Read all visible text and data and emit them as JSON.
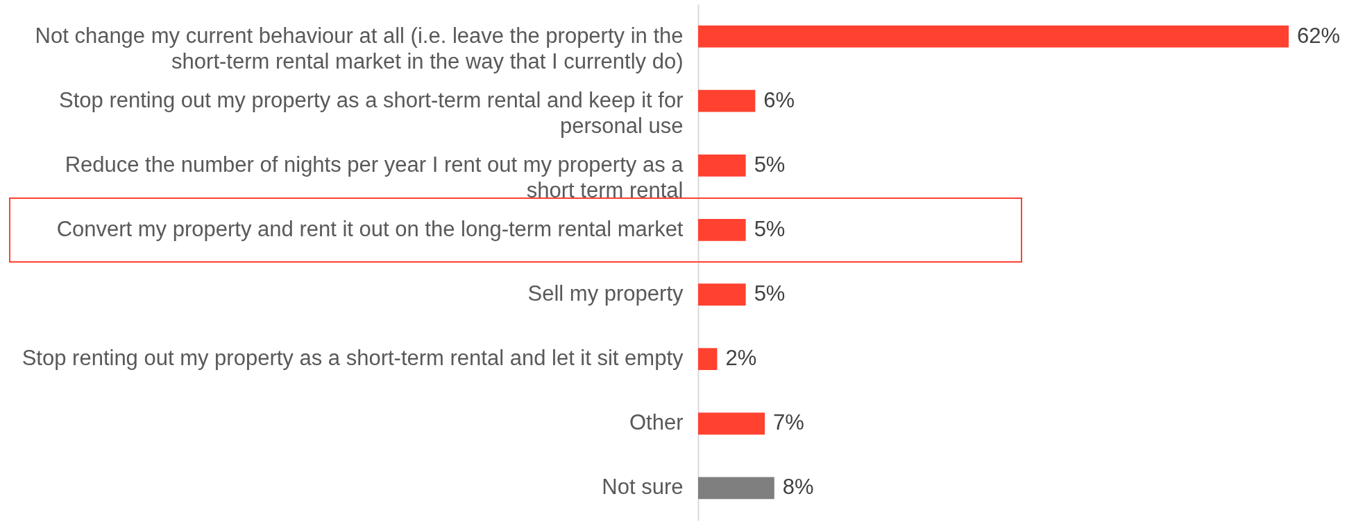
{
  "chart_data": {
    "type": "bar",
    "orientation": "horizontal",
    "categories": [
      "Not change my current behaviour at all (i.e. leave the property in the short-term rental market in the way that I currently do)",
      "Stop renting out my property as a short-term rental and keep it for personal use",
      "Reduce the number of nights per year I rent out my property as a short term rental",
      "Convert my property and rent it out on the long-term rental market",
      "Sell my property",
      "Stop renting out my property as a short-term rental and let it sit empty",
      "Other",
      "Not sure"
    ],
    "values": [
      62,
      6,
      5,
      5,
      5,
      2,
      7,
      8
    ],
    "colors": [
      "#ff4130",
      "#ff4130",
      "#ff4130",
      "#ff4130",
      "#ff4130",
      "#ff4130",
      "#ff4130",
      "#7f7f7f"
    ],
    "value_labels": [
      "62%",
      "6%",
      "5%",
      "5%",
      "5%",
      "2%",
      "7%",
      "8%"
    ],
    "grid": false
  }
}
